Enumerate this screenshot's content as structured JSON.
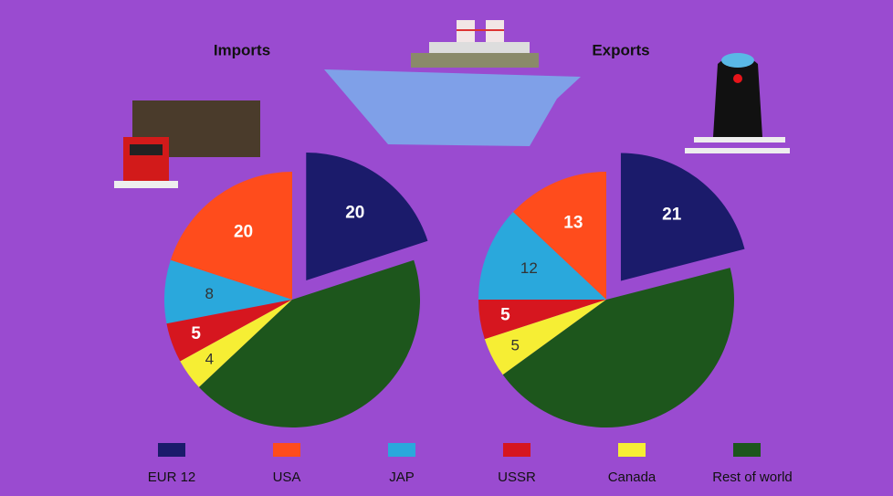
{
  "chart_data": {
    "type": "pie",
    "categories": [
      "EUR 12",
      "USA",
      "JAP",
      "USSR",
      "Canada",
      "Rest of world"
    ],
    "colors": [
      "#1b1b6b",
      "#ff4c1c",
      "#2aa8dc",
      "#d6161f",
      "#f6ee34",
      "#1d561c"
    ],
    "series": [
      {
        "name": "Imports",
        "values": [
          20,
          20,
          8,
          5,
          4,
          43
        ],
        "value_labels": [
          "20",
          "20",
          "8",
          "5",
          "4",
          null
        ]
      },
      {
        "name": "Exports",
        "values": [
          21,
          13,
          12,
          5,
          5,
          44
        ],
        "value_labels": [
          "21",
          "13",
          "12",
          "5",
          "5",
          null
        ]
      }
    ]
  }
}
